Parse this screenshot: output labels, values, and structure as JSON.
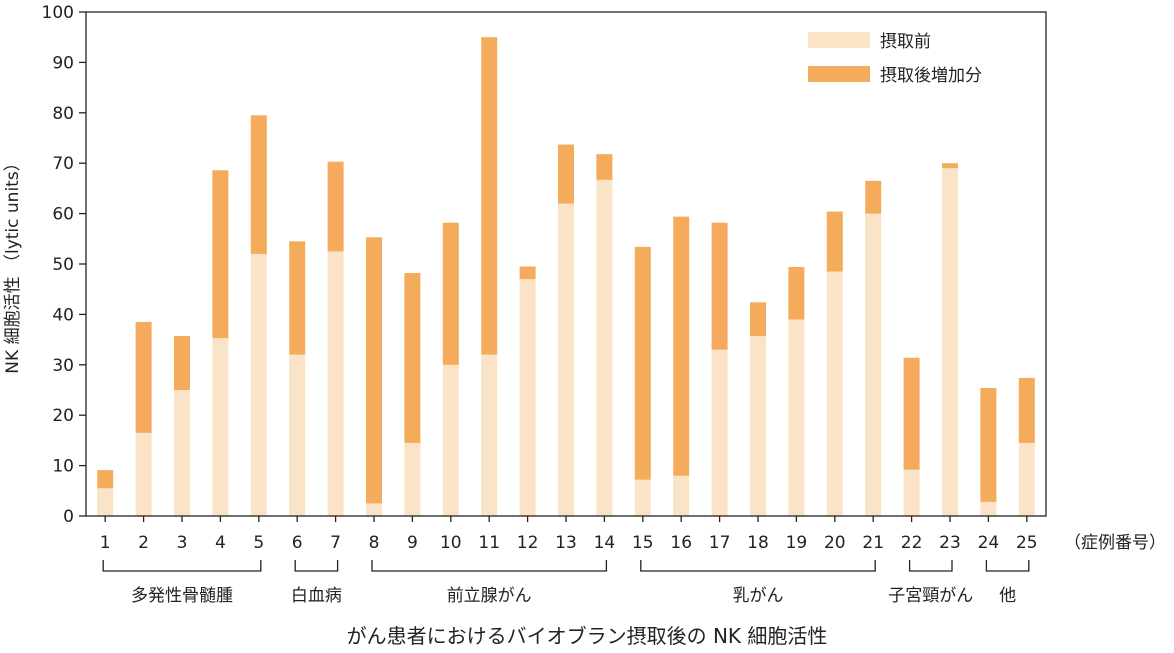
{
  "chart_data": {
    "type": "bar",
    "stacked": true,
    "categories": [
      "1",
      "2",
      "3",
      "4",
      "5",
      "6",
      "7",
      "8",
      "9",
      "10",
      "11",
      "12",
      "13",
      "14",
      "15",
      "16",
      "17",
      "18",
      "19",
      "20",
      "21",
      "22",
      "23",
      "24",
      "25"
    ],
    "series": [
      {
        "name": "摂取前",
        "color": "#fae3c6",
        "values": [
          5.5,
          16.5,
          25,
          35.3,
          52,
          32,
          52.5,
          2.5,
          14.5,
          30,
          32,
          47,
          62,
          66.7,
          7.2,
          8,
          33,
          35.7,
          39,
          48.5,
          60,
          9.2,
          69,
          2.8,
          14.5
        ]
      },
      {
        "name": "摂取後増加分",
        "color": "#f4ab5b",
        "values": [
          3.6,
          22,
          10.7,
          33.3,
          27.5,
          22.5,
          17.8,
          52.8,
          33.7,
          28.2,
          63,
          2.5,
          11.7,
          5.1,
          46.2,
          51.4,
          25.2,
          6.7,
          10.4,
          11.9,
          6.5,
          22.2,
          1,
          22.6,
          12.9
        ]
      }
    ],
    "ylabel": "NK 細胞活性 （lytic units）",
    "xlabel": "がん患者におけるバイオブラン摂取後の NK 細胞活性",
    "x_axis_note": "（症例番号）",
    "ylim": [
      0,
      100
    ],
    "yticks": [
      0,
      10,
      20,
      30,
      40,
      50,
      60,
      70,
      80,
      90,
      100
    ],
    "legend_position": "top-right",
    "groups": [
      {
        "label": "多発性骨髄腫",
        "from": 0,
        "to": 4
      },
      {
        "label": "白血病",
        "from": 5,
        "to": 6
      },
      {
        "label": "前立腺がん",
        "from": 7,
        "to": 13
      },
      {
        "label": "乳がん",
        "from": 14,
        "to": 20
      },
      {
        "label": "子宮頸がん",
        "from": 21,
        "to": 22
      },
      {
        "label": "他",
        "from": 23,
        "to": 24
      }
    ]
  }
}
